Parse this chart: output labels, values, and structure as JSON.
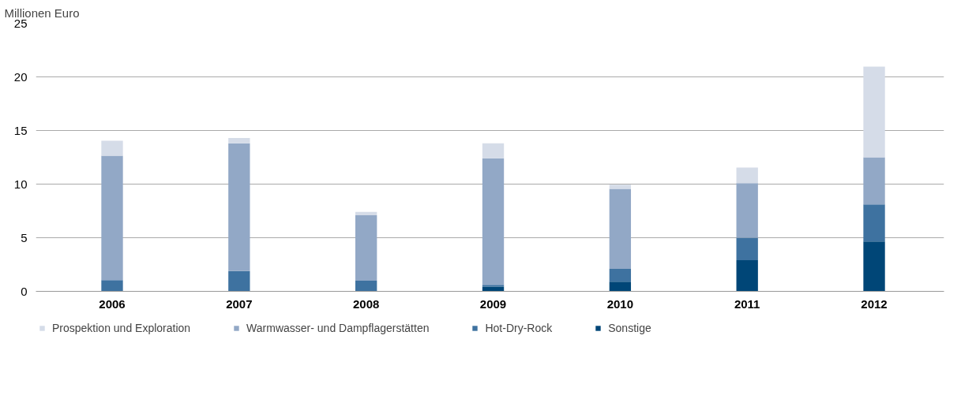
{
  "chart_data": {
    "type": "bar",
    "stacked": true,
    "ylabel": "Millionen Euro",
    "categories": [
      "2006",
      "2007",
      "2008",
      "2009",
      "2010",
      "2011",
      "2012"
    ],
    "series": [
      {
        "name": "Sonstige",
        "color": "#004677",
        "values": [
          0,
          0,
          0,
          0.45,
          0.9,
          2.9,
          4.65
        ]
      },
      {
        "name": "Hot-Dry-Rock",
        "color": "#3e72a0",
        "values": [
          1.05,
          1.9,
          1.0,
          0.15,
          1.2,
          2.1,
          3.45
        ]
      },
      {
        "name": "Warmwasser- und Dampflagerstätten",
        "color": "#92a8c6",
        "values": [
          11.6,
          11.9,
          6.1,
          11.8,
          7.45,
          5.1,
          4.4
        ]
      },
      {
        "name": "Prospektion und Exploration",
        "color": "#d5dce8",
        "values": [
          1.4,
          0.5,
          0.3,
          1.4,
          0.4,
          1.45,
          8.45
        ]
      }
    ],
    "ylim": [
      0,
      25
    ],
    "yticks": [
      0,
      5,
      10,
      15,
      20,
      25
    ],
    "grid": "y",
    "legend": "bottom"
  }
}
